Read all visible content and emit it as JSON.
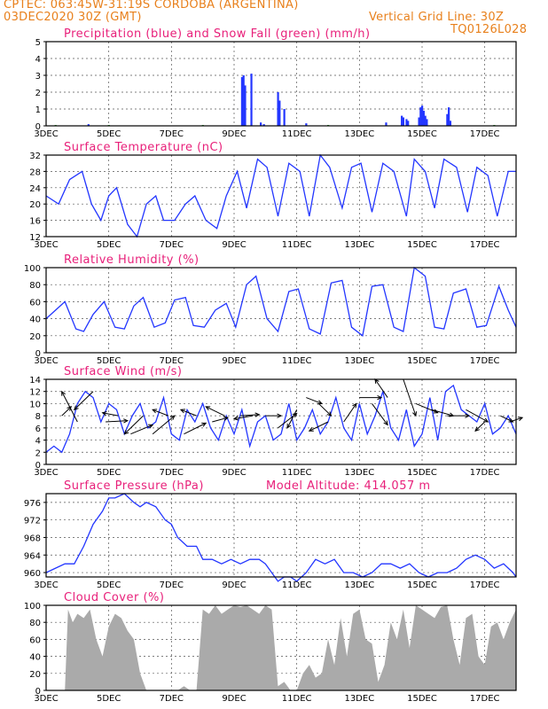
{
  "header": {
    "line1": "CPTEC:   063:45W-31:19S   CORDOBA (ARGENTINA)",
    "line2_left": "03DEC2020 30Z (GMT)",
    "line2_right": "Vertical Grid Line: 30Z",
    "line3_right": "TQ0126L028"
  },
  "x_ticks": [
    "3DEC",
    "5DEC",
    "7DEC",
    "9DEC",
    "11DEC",
    "13DEC",
    "15DEC",
    "17DEC"
  ],
  "colors": {
    "line": "#2336ff",
    "snow": "#1a9a1a",
    "cloud": "#aaaaaa",
    "title": "#e8207a",
    "header": "#e8801c",
    "arrow": "#000000"
  },
  "chart_data": [
    {
      "type": "bar",
      "title": "Precipitation (blue) and Snow Fall (green) (mm/h)",
      "ylim": [
        0,
        5
      ],
      "yticks": [
        "0",
        "1",
        "2",
        "3",
        "4",
        "5"
      ],
      "series": [
        {
          "name": "Precipitation",
          "color": "blue",
          "points": [
            [
              1.35,
              0.1
            ],
            [
              6.25,
              2.9
            ],
            [
              6.3,
              3.0
            ],
            [
              6.35,
              2.4
            ],
            [
              6.55,
              3.1
            ],
            [
              6.85,
              0.2
            ],
            [
              6.95,
              0.1
            ],
            [
              7.4,
              2.0
            ],
            [
              7.45,
              1.5
            ],
            [
              7.6,
              1.0
            ],
            [
              8.3,
              0.15
            ],
            [
              10.85,
              0.2
            ],
            [
              11.35,
              0.6
            ],
            [
              11.4,
              0.5
            ],
            [
              11.5,
              0.4
            ],
            [
              11.55,
              0.3
            ],
            [
              11.9,
              0.5
            ],
            [
              11.95,
              1.1
            ],
            [
              12.0,
              1.2
            ],
            [
              12.05,
              0.9
            ],
            [
              12.1,
              0.6
            ],
            [
              12.15,
              0.4
            ],
            [
              12.8,
              0.7
            ],
            [
              12.85,
              1.1
            ],
            [
              12.9,
              0.3
            ]
          ]
        },
        {
          "name": "Snow Fall",
          "color": "green",
          "points": [
            [
              0.3,
              0.05
            ],
            [
              2.0,
              0.05
            ],
            [
              5.0,
              0.05
            ],
            [
              9.0,
              0.05
            ],
            [
              14.3,
              0.05
            ]
          ]
        }
      ]
    },
    {
      "type": "line",
      "title": "Surface Temperature (nC)",
      "ylim": [
        12,
        32
      ],
      "yticks": [
        "12",
        "16",
        "20",
        "24",
        "28",
        "32"
      ],
      "x": [
        0,
        0.4,
        0.75,
        1.15,
        1.45,
        1.75,
        2.0,
        2.25,
        2.6,
        2.9,
        3.2,
        3.5,
        3.75,
        4.1,
        4.45,
        4.75,
        5.1,
        5.45,
        5.75,
        6.1,
        6.4,
        6.75,
        7.05,
        7.4,
        7.75,
        8.1,
        8.4,
        8.75,
        9.05,
        9.45,
        9.75,
        10.05,
        10.4,
        10.75,
        11.1,
        11.5,
        11.75,
        12.1,
        12.4,
        12.7,
        13.1,
        13.45,
        13.75,
        14.1,
        14.4,
        14.75,
        15.0
      ],
      "y": [
        22,
        20,
        26,
        28,
        20,
        16,
        22,
        24,
        15,
        12,
        20,
        22,
        16,
        16,
        20,
        22,
        16,
        14,
        22,
        28,
        19,
        31,
        29,
        17,
        30,
        28,
        17,
        32,
        29,
        19,
        29,
        30,
        18,
        30,
        28,
        17,
        31,
        28,
        19,
        31,
        29,
        18,
        29,
        27,
        17,
        28,
        28
      ]
    },
    {
      "type": "line",
      "title": "Relative Humidity (%)",
      "ylim": [
        0,
        100
      ],
      "yticks": [
        "0",
        "20",
        "40",
        "60",
        "80",
        "100"
      ],
      "x": [
        0,
        0.3,
        0.6,
        0.95,
        1.2,
        1.5,
        1.85,
        2.2,
        2.5,
        2.8,
        3.1,
        3.45,
        3.8,
        4.1,
        4.45,
        4.7,
        5.05,
        5.4,
        5.75,
        6.05,
        6.4,
        6.7,
        7.05,
        7.4,
        7.75,
        8.05,
        8.4,
        8.75,
        9.1,
        9.45,
        9.75,
        10.1,
        10.4,
        10.75,
        11.1,
        11.4,
        11.75,
        12.1,
        12.4,
        12.7,
        13.0,
        13.4,
        13.75,
        14.05,
        14.45,
        14.75,
        15.0
      ],
      "y": [
        40,
        50,
        60,
        28,
        25,
        45,
        60,
        30,
        28,
        55,
        65,
        30,
        35,
        62,
        65,
        32,
        30,
        50,
        58,
        30,
        80,
        90,
        40,
        25,
        72,
        75,
        28,
        22,
        82,
        85,
        30,
        20,
        78,
        80,
        30,
        25,
        100,
        90,
        30,
        28,
        70,
        75,
        30,
        32,
        78,
        50,
        30
      ]
    },
    {
      "type": "line",
      "title": "Surface Wind (m/s)",
      "ylim": [
        0,
        14
      ],
      "yticks": [
        "0",
        "2",
        "4",
        "6",
        "8",
        "10",
        "12",
        "14"
      ],
      "x": [
        0,
        0.25,
        0.5,
        0.75,
        1.0,
        1.25,
        1.5,
        1.75,
        2.0,
        2.25,
        2.5,
        2.75,
        3.0,
        3.25,
        3.5,
        3.75,
        4.0,
        4.25,
        4.5,
        4.75,
        5.0,
        5.25,
        5.5,
        5.75,
        6.0,
        6.25,
        6.5,
        6.75,
        7.0,
        7.25,
        7.5,
        7.75,
        8.0,
        8.25,
        8.5,
        8.75,
        9.0,
        9.25,
        9.5,
        9.75,
        10.0,
        10.25,
        10.5,
        10.75,
        11.0,
        11.25,
        11.5,
        11.75,
        12.0,
        12.25,
        12.5,
        12.75,
        13.0,
        13.25,
        13.5,
        13.75,
        14.0,
        14.25,
        14.5,
        14.75,
        15.0
      ],
      "y": [
        2,
        3,
        2,
        5,
        10,
        12,
        11,
        7,
        10,
        9,
        5,
        8,
        10,
        6,
        7,
        11,
        5,
        4,
        9,
        7,
        10,
        6,
        4,
        8,
        5,
        9,
        3,
        7,
        8,
        4,
        5,
        10,
        4,
        6,
        9,
        5,
        7,
        11,
        6,
        4,
        10,
        5,
        8,
        12,
        6,
        4,
        9,
        3,
        5,
        11,
        4,
        12,
        13,
        9,
        8,
        7,
        10,
        5,
        6,
        8,
        5
      ],
      "arrows": [
        {
          "x": 0.5,
          "y": 8,
          "dx": 0.3,
          "dy": 1.5
        },
        {
          "x": 1.0,
          "y": 7,
          "dx": -0.5,
          "dy": 5
        },
        {
          "x": 1.5,
          "y": 12,
          "dx": -0.6,
          "dy": -3
        },
        {
          "x": 1.9,
          "y": 7,
          "dx": 0.7,
          "dy": 0.2
        },
        {
          "x": 2.3,
          "y": 8,
          "dx": -0.5,
          "dy": 0.5
        },
        {
          "x": 2.7,
          "y": 5,
          "dx": 0.7,
          "dy": 1.5
        },
        {
          "x": 3.1,
          "y": 8,
          "dx": -0.6,
          "dy": -3
        },
        {
          "x": 3.4,
          "y": 5,
          "dx": 0.7,
          "dy": 3
        },
        {
          "x": 3.9,
          "y": 8,
          "dx": -0.5,
          "dy": 1
        },
        {
          "x": 4.4,
          "y": 5,
          "dx": 0.7,
          "dy": 1.8
        },
        {
          "x": 4.8,
          "y": 8,
          "dx": -0.5,
          "dy": 1
        },
        {
          "x": 5.3,
          "y": 7,
          "dx": 0.5,
          "dy": 0.7
        },
        {
          "x": 5.7,
          "y": 8,
          "dx": -0.6,
          "dy": 1.5
        },
        {
          "x": 6.2,
          "y": 8,
          "dx": 0.6,
          "dy": 0.2
        },
        {
          "x": 6.6,
          "y": 8,
          "dx": -0.6,
          "dy": -0.5
        },
        {
          "x": 7.0,
          "y": 8,
          "dx": 0.5,
          "dy": 0
        },
        {
          "x": 7.4,
          "y": 6,
          "dx": 0.6,
          "dy": 2.4
        },
        {
          "x": 8.0,
          "y": 9,
          "dx": -0.3,
          "dy": -3
        },
        {
          "x": 8.3,
          "y": 11,
          "dx": 0.5,
          "dy": -1
        },
        {
          "x": 8.7,
          "y": 10,
          "dx": 0.4,
          "dy": -2
        },
        {
          "x": 9.0,
          "y": 7,
          "dx": -0.6,
          "dy": -1.5
        },
        {
          "x": 9.5,
          "y": 7,
          "dx": 0.4,
          "dy": 3
        },
        {
          "x": 10.0,
          "y": 11,
          "dx": 0.7,
          "dy": 0
        },
        {
          "x": 10.4,
          "y": 10,
          "dx": 0.5,
          "dy": -3.5
        },
        {
          "x": 10.9,
          "y": 11,
          "dx": -0.4,
          "dy": 3
        },
        {
          "x": 11.4,
          "y": 14,
          "dx": 0.4,
          "dy": -6
        },
        {
          "x": 11.8,
          "y": 10,
          "dx": 0.7,
          "dy": -1.5
        },
        {
          "x": 12.3,
          "y": 9,
          "dx": 0.7,
          "dy": -1
        },
        {
          "x": 12.8,
          "y": 8,
          "dx": 0.7,
          "dy": 0
        },
        {
          "x": 13.4,
          "y": 9,
          "dx": 0.7,
          "dy": -2
        },
        {
          "x": 14.0,
          "y": 7,
          "dx": -0.3,
          "dy": -1.5
        },
        {
          "x": 14.5,
          "y": 8,
          "dx": 0.4,
          "dy": -1
        },
        {
          "x": 14.8,
          "y": 7,
          "dx": 0.4,
          "dy": 0.7
        }
      ]
    },
    {
      "type": "line",
      "title": "Surface Pressure (hPa)",
      "subtitle": "Model Altitude: 414.057 m",
      "ylim": [
        959,
        978
      ],
      "yticks": [
        "960",
        "964",
        "968",
        "972",
        "976"
      ],
      "x": [
        0,
        0.3,
        0.6,
        0.9,
        1.2,
        1.5,
        1.8,
        2.0,
        2.2,
        2.5,
        2.8,
        3.0,
        3.2,
        3.5,
        3.8,
        4.0,
        4.2,
        4.5,
        4.8,
        5.0,
        5.3,
        5.6,
        5.9,
        6.2,
        6.5,
        6.8,
        7.0,
        7.2,
        7.4,
        7.6,
        7.8,
        8.0,
        8.3,
        8.6,
        8.9,
        9.2,
        9.5,
        9.8,
        10.1,
        10.4,
        10.7,
        11.0,
        11.3,
        11.6,
        11.9,
        12.2,
        12.5,
        12.8,
        13.1,
        13.4,
        13.7,
        14.0,
        14.3,
        14.6,
        14.9,
        15.0
      ],
      "y": [
        960,
        961,
        962,
        962,
        966,
        971,
        974,
        977,
        977,
        978,
        976,
        975,
        976,
        975,
        972,
        971,
        968,
        966,
        966,
        963,
        963,
        962,
        963,
        962,
        963,
        963,
        962,
        960,
        958,
        959,
        959,
        958,
        960,
        963,
        962,
        963,
        960,
        960,
        959,
        960,
        962,
        962,
        961,
        962,
        960,
        959,
        960,
        960,
        961,
        963,
        964,
        963,
        961,
        962,
        960,
        959
      ]
    },
    {
      "type": "area",
      "title": "Cloud Cover (%)",
      "ylim": [
        0,
        100
      ],
      "yticks": [
        "0",
        "20",
        "40",
        "60",
        "80",
        "100"
      ],
      "x": [
        0,
        0.6,
        0.7,
        0.85,
        1.0,
        1.2,
        1.4,
        1.6,
        1.8,
        2.0,
        2.2,
        2.4,
        2.6,
        2.8,
        3.0,
        3.2,
        3.4,
        3.6,
        3.8,
        4.0,
        4.2,
        4.4,
        4.6,
        4.8,
        5.0,
        5.2,
        5.4,
        5.6,
        5.8,
        6.0,
        6.2,
        6.4,
        6.6,
        6.8,
        7.0,
        7.2,
        7.4,
        7.6,
        7.8,
        8.0,
        8.2,
        8.4,
        8.6,
        8.8,
        9.0,
        9.2,
        9.4,
        9.6,
        9.8,
        10.0,
        10.2,
        10.4,
        10.6,
        10.8,
        11.0,
        11.2,
        11.4,
        11.6,
        11.8,
        12.0,
        12.2,
        12.4,
        12.6,
        12.8,
        13.0,
        13.2,
        13.4,
        13.6,
        13.8,
        14.0,
        14.2,
        14.4,
        14.6,
        14.8,
        15.0
      ],
      "y": [
        0,
        0,
        95,
        80,
        90,
        85,
        95,
        60,
        40,
        75,
        90,
        85,
        70,
        60,
        20,
        0,
        0,
        0,
        0,
        0,
        0,
        5,
        0,
        0,
        95,
        90,
        100,
        90,
        95,
        100,
        98,
        100,
        95,
        90,
        100,
        95,
        5,
        10,
        0,
        0,
        20,
        30,
        15,
        20,
        60,
        30,
        85,
        40,
        90,
        95,
        60,
        55,
        10,
        30,
        80,
        60,
        95,
        50,
        100,
        95,
        90,
        85,
        98,
        100,
        60,
        30,
        85,
        90,
        40,
        30,
        75,
        80,
        60,
        80,
        95
      ]
    }
  ]
}
